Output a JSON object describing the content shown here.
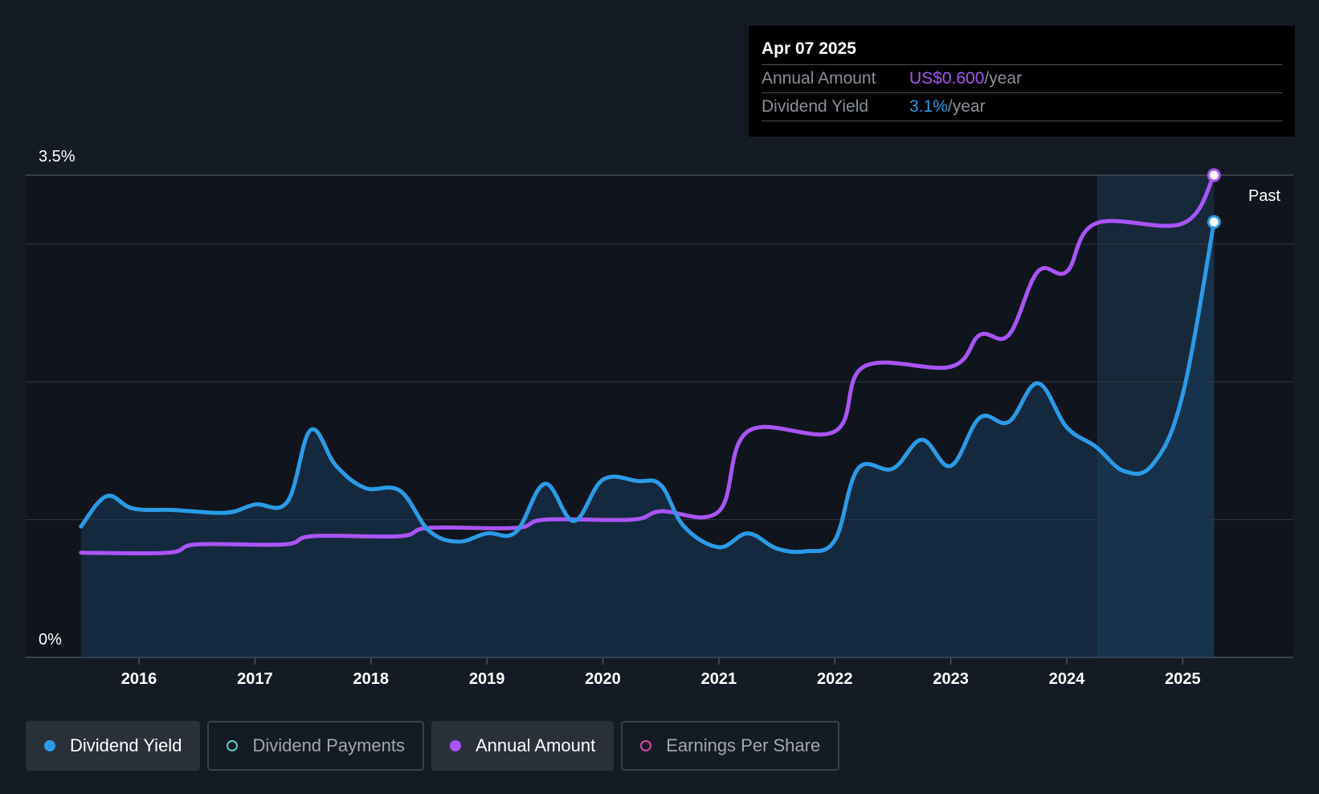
{
  "tooltip": {
    "date": "Apr 07 2025",
    "annual_label": "Annual Amount",
    "annual_value": "US$0.600",
    "annual_unit": "/year",
    "yield_label": "Dividend Yield",
    "yield_value": "3.1%",
    "yield_unit": "/year"
  },
  "past_label": "Past",
  "legend": [
    {
      "label": "Dividend Yield",
      "color": "#2b9be6",
      "active": true,
      "filled": true
    },
    {
      "label": "Dividend Payments",
      "color": "#4fd1c5",
      "active": false,
      "filled": false
    },
    {
      "label": "Annual Amount",
      "color": "#a855f7",
      "active": true,
      "filled": true
    },
    {
      "label": "Earnings Per Share",
      "color": "#d946a8",
      "active": false,
      "filled": false
    }
  ],
  "chart_data": {
    "type": "line",
    "y_tick_labels": [
      "3.5%",
      "0%"
    ],
    "ylim": [
      0,
      3.5
    ],
    "xlim": [
      2015.5,
      2025.27
    ],
    "x_ticks": [
      2016,
      2017,
      2018,
      2019,
      2020,
      2021,
      2022,
      2023,
      2024,
      2025
    ],
    "past_region_start": 2024.27,
    "series": [
      {
        "name": "Dividend Yield",
        "color": "#2b9be6",
        "x": [
          2015.5,
          2015.72,
          2015.95,
          2016.3,
          2016.75,
          2017.0,
          2017.28,
          2017.48,
          2017.7,
          2017.95,
          2018.25,
          2018.5,
          2018.75,
          2019.0,
          2019.25,
          2019.5,
          2019.75,
          2020.0,
          2020.3,
          2020.5,
          2020.7,
          2021.0,
          2021.25,
          2021.5,
          2021.75,
          2022.0,
          2022.2,
          2022.5,
          2022.75,
          2023.0,
          2023.25,
          2023.5,
          2023.75,
          2024.0,
          2024.25,
          2024.5,
          2024.75,
          2025.0,
          2025.27
        ],
        "y": [
          0.95,
          1.17,
          1.08,
          1.07,
          1.05,
          1.11,
          1.13,
          1.65,
          1.39,
          1.23,
          1.21,
          0.92,
          0.84,
          0.9,
          0.91,
          1.26,
          0.99,
          1.29,
          1.28,
          1.25,
          0.95,
          0.8,
          0.9,
          0.79,
          0.77,
          0.85,
          1.37,
          1.37,
          1.58,
          1.39,
          1.74,
          1.71,
          1.99,
          1.67,
          1.53,
          1.35,
          1.41,
          1.91,
          3.16
        ]
      },
      {
        "name": "Annual Amount",
        "color": "#a855f7",
        "x": [
          2015.5,
          2016.25,
          2016.5,
          2017.25,
          2017.5,
          2018.25,
          2018.5,
          2019.25,
          2019.5,
          2020.25,
          2020.5,
          2021.0,
          2021.25,
          2022.0,
          2022.25,
          2023.0,
          2023.25,
          2023.5,
          2023.75,
          2024.0,
          2024.25,
          2025.0,
          2025.27
        ],
        "y": [
          0.76,
          0.76,
          0.82,
          0.82,
          0.88,
          0.88,
          0.94,
          0.94,
          1.0,
          1.0,
          1.06,
          1.06,
          1.64,
          1.64,
          2.11,
          2.11,
          2.34,
          2.34,
          2.8,
          2.8,
          3.15,
          3.15,
          3.5
        ]
      }
    ]
  }
}
